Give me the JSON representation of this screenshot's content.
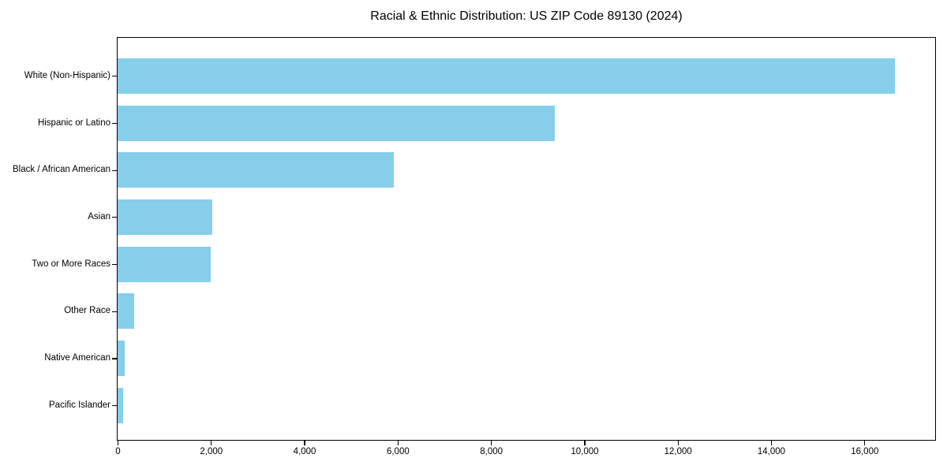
{
  "chart_data": {
    "type": "bar",
    "orientation": "horizontal",
    "title": "Racial & Ethnic Distribution: US ZIP Code 89130 (2024)",
    "xlabel": "",
    "ylabel": "",
    "categories": [
      "White (Non-Hispanic)",
      "Hispanic or Latino",
      "Black / African American",
      "Asian",
      "Two or More Races",
      "Other Race",
      "Native American",
      "Pacific Islander"
    ],
    "values": [
      16650,
      9360,
      5910,
      2030,
      1990,
      350,
      150,
      110
    ],
    "xlim": [
      0,
      17500
    ],
    "x_ticks": [
      0,
      2000,
      4000,
      6000,
      8000,
      10000,
      12000,
      14000,
      16000
    ],
    "x_tick_labels": [
      "0",
      "2,000",
      "4,000",
      "6,000",
      "8,000",
      "10,000",
      "12,000",
      "14,000",
      "16,000"
    ],
    "bar_color": "#87CEEB",
    "grid": false,
    "legend": null
  }
}
